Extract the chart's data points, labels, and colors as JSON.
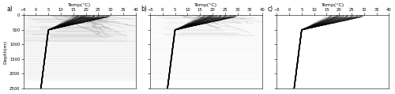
{
  "title": "Temp(°C)",
  "xlabel": "Temp(°C)",
  "ylabel": "Depth(m)",
  "xlim": [
    -5,
    40
  ],
  "ylim": [
    2500,
    0
  ],
  "xticks": [
    -5,
    0,
    5,
    10,
    15,
    20,
    25,
    30,
    35,
    40
  ],
  "yticks": [
    0,
    500,
    1000,
    1500,
    2000,
    2500
  ],
  "panels": [
    "a)",
    "b)",
    "c)"
  ],
  "bg_color": "#ffffff",
  "seed": 12345
}
